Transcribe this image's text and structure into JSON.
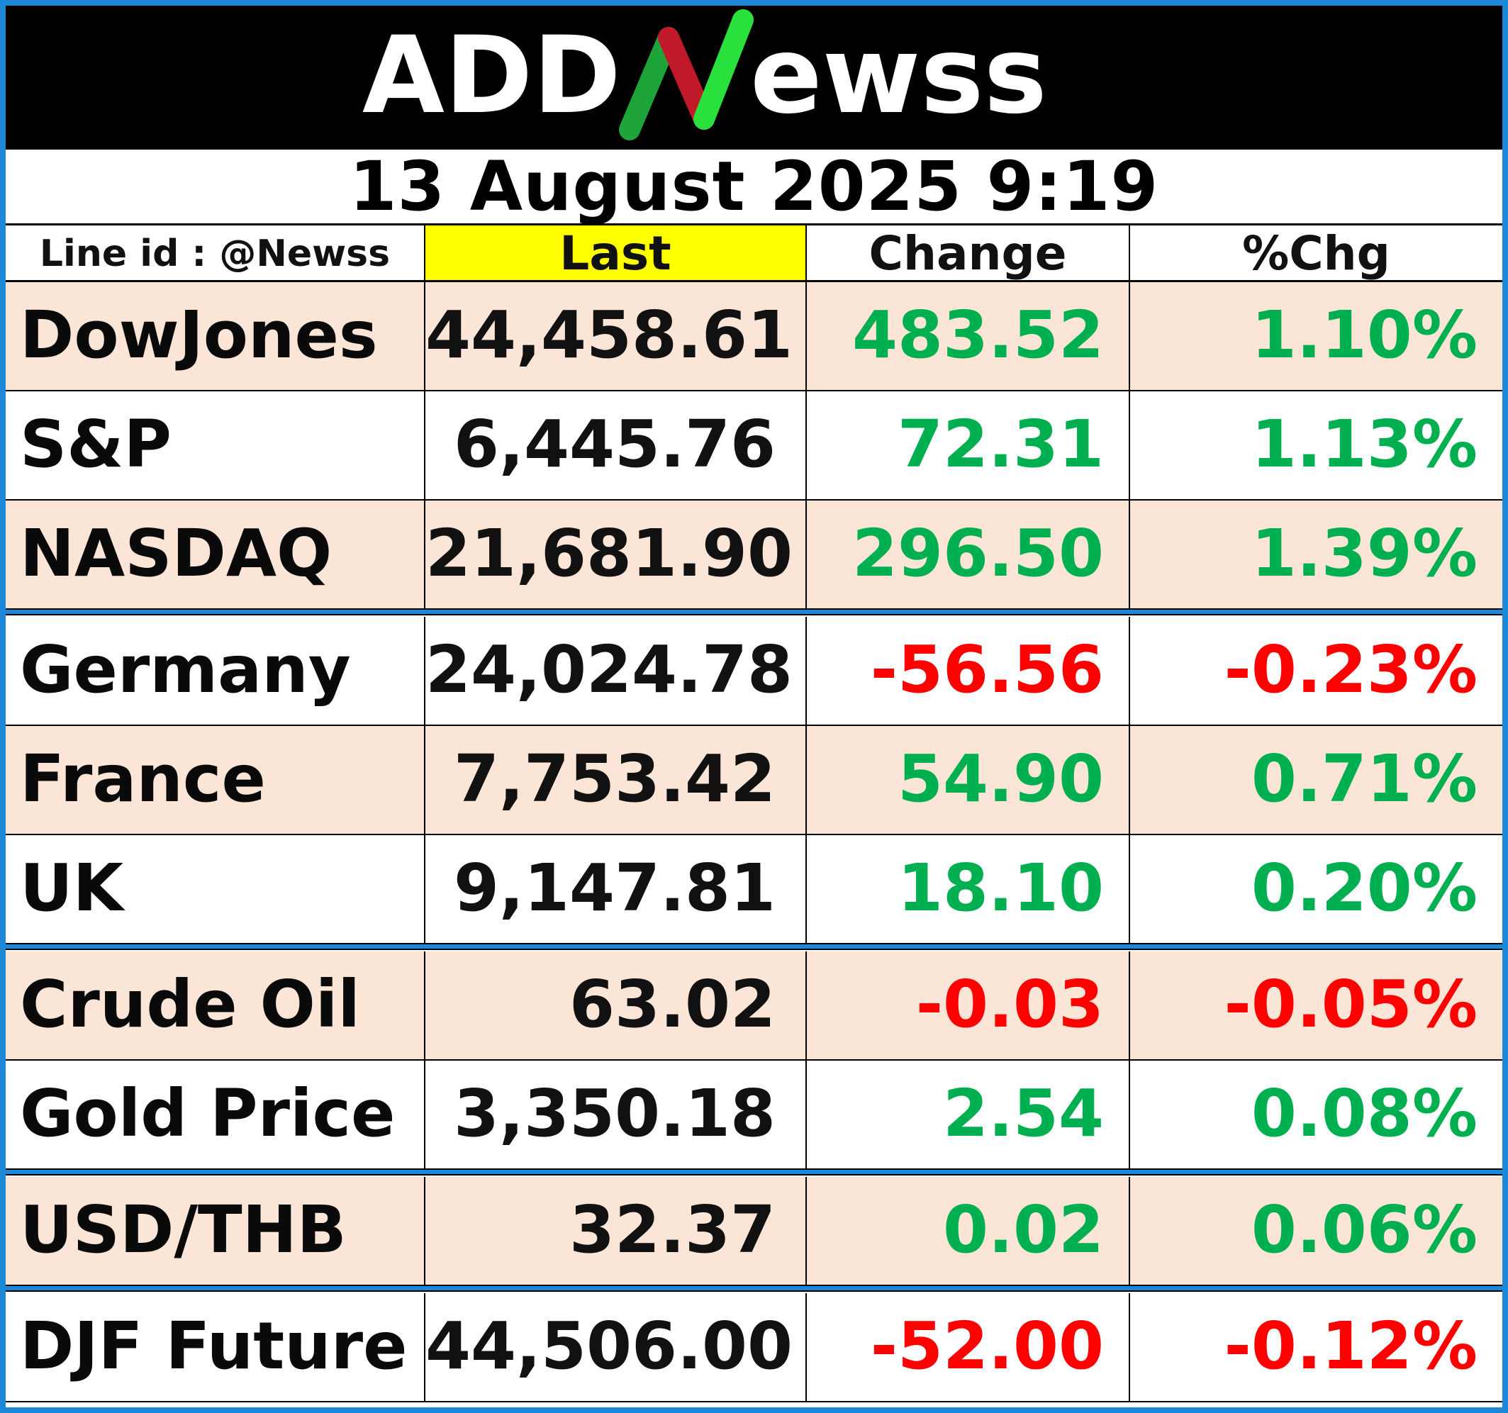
{
  "logo": {
    "text_left": "ADD",
    "letter_n": "N",
    "text_right": "ewss"
  },
  "date_line": "13 August 2025  9:19",
  "header": {
    "line_id": "Line id : @Newss",
    "last": "Last",
    "change": "Change",
    "pct": "%Chg"
  },
  "colors": {
    "positive": "#00b050",
    "negative": "#ff0000",
    "highlight_row": "#fbe5d6",
    "last_header": "#ffff00",
    "border_accent": "#1e88d8"
  },
  "rows": [
    {
      "name": "DowJones",
      "last": "44,458.61",
      "change": "483.52",
      "pct": "1.10%",
      "dir": "up"
    },
    {
      "name": "S&P",
      "last": "6,445.76",
      "change": "72.31",
      "pct": "1.13%",
      "dir": "up"
    },
    {
      "name": "NASDAQ",
      "last": "21,681.90",
      "change": "296.50",
      "pct": "1.39%",
      "dir": "up"
    },
    {
      "name": "Germany",
      "last": "24,024.78",
      "change": "-56.56",
      "pct": "-0.23%",
      "dir": "down"
    },
    {
      "name": "France",
      "last": "7,753.42",
      "change": "54.90",
      "pct": "0.71%",
      "dir": "up"
    },
    {
      "name": "UK",
      "last": "9,147.81",
      "change": "18.10",
      "pct": "0.20%",
      "dir": "up"
    },
    {
      "name": "Crude Oil",
      "last": "63.02",
      "change": "-0.03",
      "pct": "-0.05%",
      "dir": "down"
    },
    {
      "name": "Gold Price",
      "last": "3,350.18",
      "change": "2.54",
      "pct": "0.08%",
      "dir": "up"
    },
    {
      "name": "USD/THB",
      "last": "32.37",
      "change": "0.02",
      "pct": "0.06%",
      "dir": "up"
    },
    {
      "name": "DJF Future",
      "last": "44,506.00",
      "change": "-52.00",
      "pct": "-0.12%",
      "dir": "down"
    }
  ]
}
